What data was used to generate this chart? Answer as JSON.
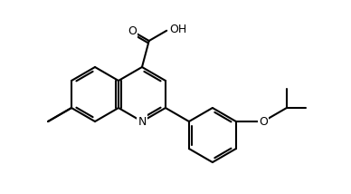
{
  "bg_color": "#ffffff",
  "line_color": "#000000",
  "line_width": 1.5,
  "font_size": 9,
  "figsize": [
    3.88,
    2.14
  ],
  "dpi": 100,
  "xlim": [
    0,
    388
  ],
  "ylim": [
    0,
    214
  ]
}
